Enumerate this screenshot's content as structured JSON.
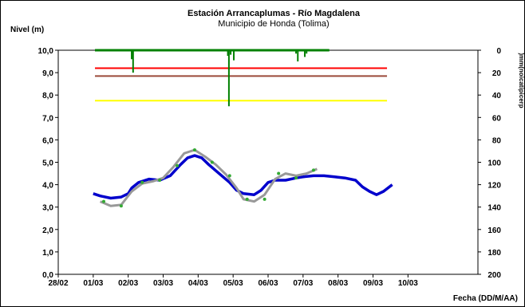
{
  "chart_data": {
    "type": "line",
    "title": "Estación Arrancaplumas - Río Magdalena",
    "subtitle": "Municipio de Honda (Tolima)",
    "ylabel": "Nivel (m)",
    "xlabel": "Fecha (DD/M/AA)",
    "y2label": ")mm(noicatipicerp",
    "ylim": [
      0,
      10
    ],
    "y2lim": [
      200,
      0
    ],
    "xlim": [
      0,
      12
    ],
    "yticks": [
      "0,0",
      "1,0",
      "2,0",
      "3,0",
      "4,0",
      "5,0",
      "6,0",
      "7,0",
      "8,0",
      "9,0",
      "10,0"
    ],
    "y2ticks": [
      "200",
      "180",
      "160",
      "140",
      "120",
      "100",
      "80",
      "60",
      "40",
      "20",
      "0"
    ],
    "xticks": [
      "28/02",
      "01/03",
      "02/03",
      "03/03",
      "04/03",
      "05/03",
      "06/03",
      "07/03",
      "08/03",
      "09/03",
      "10/03"
    ],
    "grid": false,
    "reference_lines": [
      {
        "y": 9.2,
        "color": "#ff0000"
      },
      {
        "y": 8.85,
        "color": "#9b4a3a"
      },
      {
        "y": 7.75,
        "color": "#ffff00"
      }
    ],
    "series": [
      {
        "kind": "level_observed",
        "color": "#0000cc",
        "x": [
          1.0,
          1.2,
          1.5,
          1.8,
          2.0,
          2.1,
          2.3,
          2.6,
          2.9,
          3.2,
          3.5,
          3.7,
          3.9,
          4.1,
          4.3,
          4.6,
          4.9,
          5.1,
          5.3,
          5.6,
          5.8,
          6.0,
          6.2,
          6.5,
          6.8,
          7.0,
          7.3,
          7.6,
          7.9,
          8.2,
          8.5,
          8.7,
          8.9,
          9.1,
          9.3,
          9.55
        ],
        "y": [
          3.6,
          3.5,
          3.4,
          3.45,
          3.6,
          3.85,
          4.1,
          4.25,
          4.2,
          4.4,
          4.9,
          5.2,
          5.3,
          5.2,
          4.9,
          4.5,
          4.1,
          3.75,
          3.6,
          3.55,
          3.75,
          4.1,
          4.2,
          4.2,
          4.3,
          4.35,
          4.4,
          4.4,
          4.35,
          4.3,
          4.2,
          3.9,
          3.7,
          3.55,
          3.7,
          4.0
        ]
      },
      {
        "kind": "level_smoothed",
        "color": "#999999",
        "x": [
          1.2,
          1.5,
          1.8,
          2.1,
          2.4,
          2.7,
          3.0,
          3.3,
          3.6,
          3.9,
          4.2,
          4.5,
          4.8,
          5.1,
          5.3,
          5.6,
          5.9,
          6.2,
          6.5,
          6.8,
          7.1,
          7.4
        ],
        "y": [
          3.25,
          3.05,
          3.1,
          3.7,
          4.05,
          4.15,
          4.3,
          4.8,
          5.4,
          5.55,
          5.25,
          4.9,
          4.45,
          3.85,
          3.35,
          3.25,
          3.55,
          4.25,
          4.5,
          4.4,
          4.5,
          4.7
        ]
      },
      {
        "kind": "level_points",
        "color": "#33aa33",
        "x": [
          1.3,
          1.8,
          2.4,
          2.9,
          3.4,
          3.9,
          4.4,
          4.9,
          5.4,
          5.9,
          6.3,
          6.8,
          7.3
        ],
        "y": [
          3.25,
          3.05,
          4.1,
          4.2,
          4.85,
          5.55,
          5.0,
          4.4,
          3.35,
          3.35,
          4.5,
          4.3,
          4.65
        ]
      },
      {
        "kind": "precipitation",
        "color": "#008000",
        "x": [
          2.1,
          2.14,
          4.85,
          4.88,
          4.93,
          5.02,
          6.8,
          6.85,
          7.05,
          7.1
        ],
        "y2": [
          8,
          20,
          5,
          50,
          4,
          9,
          3,
          10,
          6,
          3
        ]
      }
    ]
  }
}
